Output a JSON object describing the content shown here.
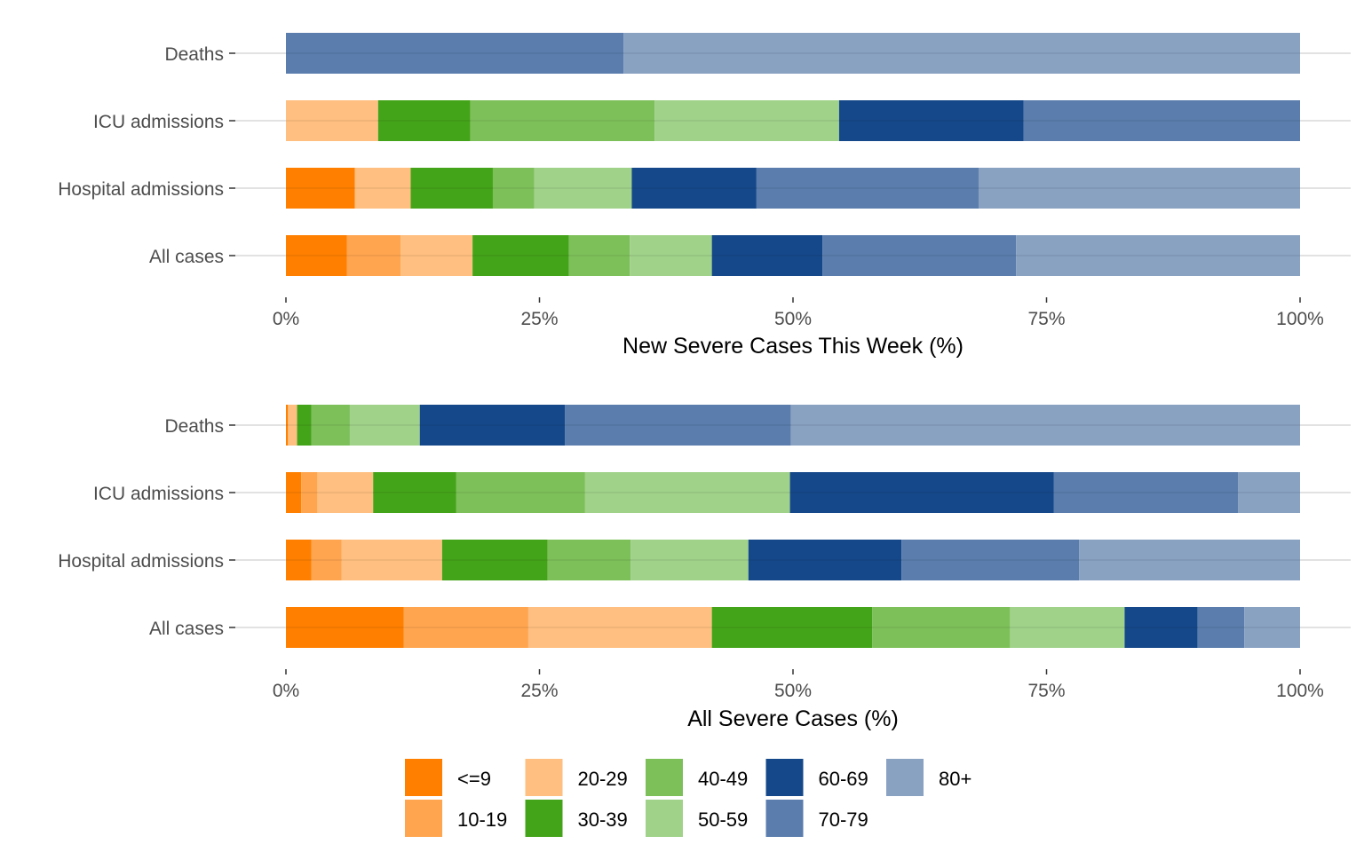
{
  "chart_data": [
    {
      "type": "bar",
      "orientation": "horizontal",
      "stacked": "percent",
      "xlabel": "New Severe Cases This Week (%)",
      "ylabel": "",
      "xlim": [
        0,
        100
      ],
      "x_ticks": [
        "0%",
        "25%",
        "50%",
        "75%",
        "100%"
      ],
      "categories": [
        "Deaths",
        "ICU admissions",
        "Hospital admissions",
        "All cases"
      ],
      "series": [
        {
          "name": "<=9",
          "values": [
            0,
            0,
            6.8,
            6.0
          ]
        },
        {
          "name": "10-19",
          "values": [
            0,
            0,
            0,
            5.3
          ]
        },
        {
          "name": "20-29",
          "values": [
            0,
            9.1,
            5.5,
            7.1
          ]
        },
        {
          "name": "30-39",
          "values": [
            0,
            9.1,
            8.1,
            9.5
          ]
        },
        {
          "name": "40-49",
          "values": [
            0,
            18.2,
            4.1,
            6.0
          ]
        },
        {
          "name": "50-59",
          "values": [
            0,
            18.2,
            9.6,
            8.1
          ]
        },
        {
          "name": "60-69",
          "values": [
            0,
            18.2,
            12.3,
            10.9
          ]
        },
        {
          "name": "70-79",
          "values": [
            33.3,
            27.3,
            21.9,
            19.1
          ]
        },
        {
          "name": "80+",
          "values": [
            66.7,
            0,
            31.7,
            28.0
          ]
        }
      ]
    },
    {
      "type": "bar",
      "orientation": "horizontal",
      "stacked": "percent",
      "xlabel": "All Severe Cases (%)",
      "ylabel": "",
      "xlim": [
        0,
        100
      ],
      "x_ticks": [
        "0%",
        "25%",
        "50%",
        "75%",
        "100%"
      ],
      "categories": [
        "Deaths",
        "ICU admissions",
        "Hospital admissions",
        "All cases"
      ],
      "series": [
        {
          "name": "<=9",
          "values": [
            0.2,
            1.5,
            2.5,
            11.6
          ]
        },
        {
          "name": "10-19",
          "values": [
            0,
            1.6,
            3.0,
            12.3
          ]
        },
        {
          "name": "20-29",
          "values": [
            0.9,
            5.5,
            9.9,
            18.1
          ]
        },
        {
          "name": "30-39",
          "values": [
            1.4,
            8.2,
            10.4,
            15.8
          ]
        },
        {
          "name": "40-49",
          "values": [
            3.8,
            12.7,
            8.2,
            13.6
          ]
        },
        {
          "name": "50-59",
          "values": [
            6.9,
            20.2,
            11.6,
            11.3
          ]
        },
        {
          "name": "60-69",
          "values": [
            14.3,
            26.0,
            15.1,
            7.2
          ]
        },
        {
          "name": "70-79",
          "values": [
            22.3,
            18.2,
            17.5,
            4.6
          ]
        },
        {
          "name": "80+",
          "values": [
            50.2,
            6.1,
            21.8,
            5.5
          ]
        }
      ]
    }
  ],
  "legend": {
    "position": "bottom",
    "items": [
      {
        "label": "<=9",
        "color": "#FF7F00"
      },
      {
        "label": "10-19",
        "color": "#FFA54F"
      },
      {
        "label": "20-29",
        "color": "#FFBF80"
      },
      {
        "label": "30-39",
        "color": "#44A419"
      },
      {
        "label": "40-49",
        "color": "#7DC05A"
      },
      {
        "label": "50-59",
        "color": "#A0D28A"
      },
      {
        "label": "60-69",
        "color": "#15488A"
      },
      {
        "label": "70-79",
        "color": "#5A7DAD"
      },
      {
        "label": "80+",
        "color": "#89A2C2"
      }
    ]
  }
}
